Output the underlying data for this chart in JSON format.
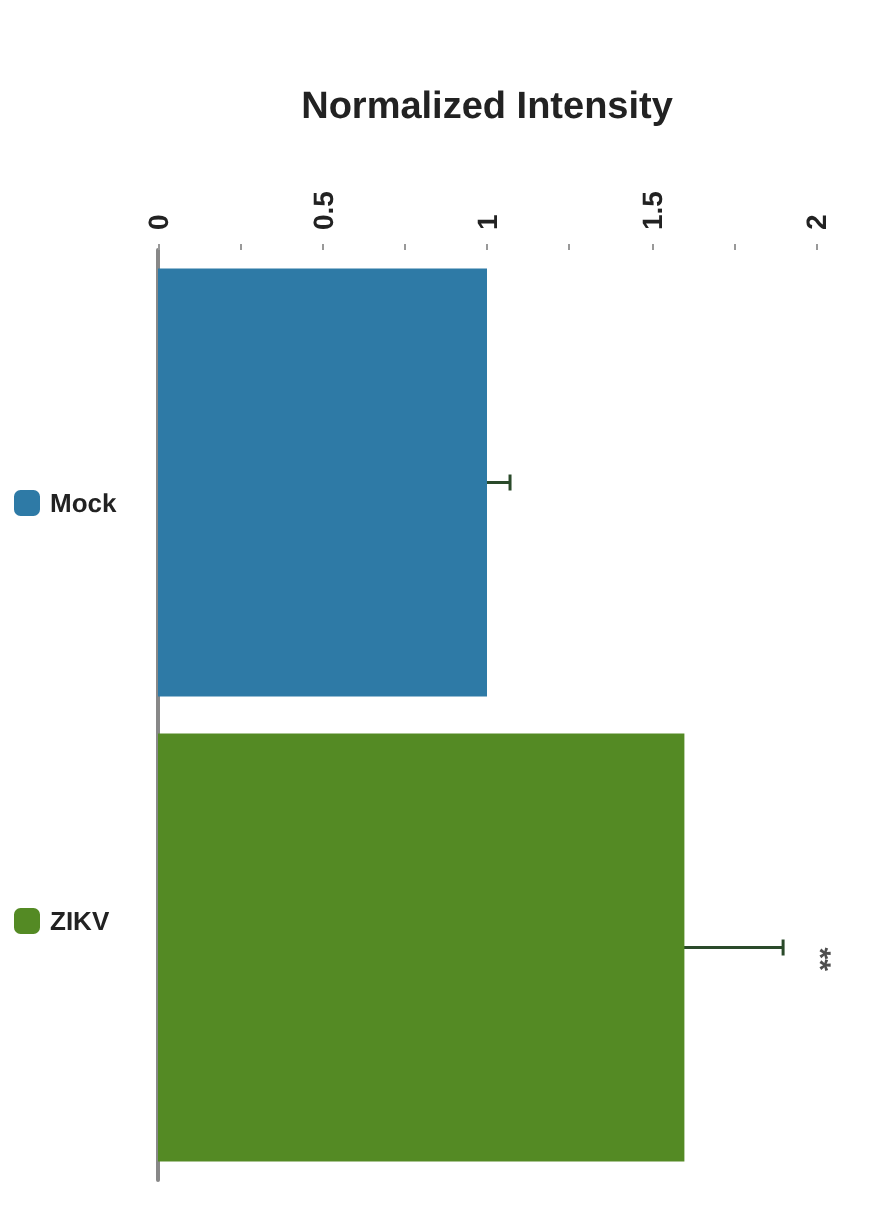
{
  "chart_data": {
    "type": "bar",
    "orientation": "horizontal",
    "stacked": true,
    "xlabel": "Normalized Intensity",
    "categories": [
      null,
      null
    ],
    "series": [
      {
        "name": "Mock",
        "color": "#2e7aa6",
        "values": [
          1.0,
          null
        ],
        "errors": [
          0.07,
          null
        ]
      },
      {
        "name": "ZIKV",
        "color": "#548a24",
        "values": [
          null,
          1.6
        ],
        "errors": [
          null,
          0.3
        ]
      }
    ],
    "xlim": [
      0,
      2
    ],
    "xticks": [
      0,
      {
        "value": 0.25,
        "label": null
      },
      0.5,
      {
        "value": 0.75,
        "label": null
      },
      1,
      {
        "value": 1.25,
        "label": null
      },
      1.5,
      {
        "value": 1.75,
        "label": null
      },
      2
    ],
    "annotations": [
      {
        "text": "**",
        "x": 1.9
      }
    ],
    "legend": "left",
    "grid": false
  }
}
